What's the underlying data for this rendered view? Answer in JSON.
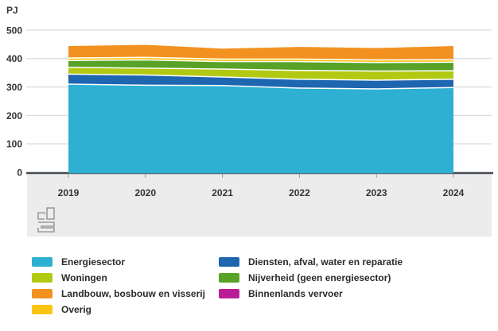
{
  "chart": {
    "unit": "PJ"
  },
  "chart_data": {
    "type": "area",
    "stacked": true,
    "title": "",
    "ylabel": "PJ",
    "xlabel": "",
    "ylim": [
      0,
      500
    ],
    "yticks": [
      0,
      100,
      200,
      300,
      400,
      500
    ],
    "grid": true,
    "legend_position": "bottom",
    "x": [
      2019,
      2020,
      2021,
      2022,
      2023,
      2024
    ],
    "series": [
      {
        "name": "Energiesector",
        "color": "#2EB0D3",
        "values": [
          310,
          306,
          305,
          296,
          293,
          298
        ]
      },
      {
        "name": "Diensten, afval, water en reparatie",
        "color": "#1F66B0",
        "values": [
          35,
          36,
          30,
          31,
          31,
          29
        ]
      },
      {
        "name": "Woningen",
        "color": "#B2C914",
        "values": [
          24,
          24,
          28,
          31,
          32,
          30
        ]
      },
      {
        "name": "Nijverheid (geen energiesector)",
        "color": "#58A227",
        "values": [
          24,
          29,
          26,
          31,
          30,
          30
        ]
      },
      {
        "name": "Overig",
        "color": "#FDC513",
        "values": [
          9,
          9,
          9,
          9,
          9,
          9
        ]
      },
      {
        "name": "Landbouw, bosbouw en visserij",
        "color": "#F29120",
        "values": [
          44,
          46,
          39,
          45,
          44,
          50
        ]
      },
      {
        "name": "Binnenlands vervoer",
        "color": "#B81F96",
        "values": [
          0,
          0,
          0,
          0,
          0,
          0
        ]
      }
    ]
  },
  "legend": {
    "columns": [
      [
        {
          "label": "Energiesector",
          "color": "#2EB0D3"
        },
        {
          "label": "Woningen",
          "color": "#B2C914"
        },
        {
          "label": "Landbouw, bosbouw en visserij",
          "color": "#F29120"
        },
        {
          "label": "Overig",
          "color": "#FDC513"
        }
      ],
      [
        {
          "label": "Diensten, afval, water en reparatie",
          "color": "#1F66B0"
        },
        {
          "label": "Nijverheid (geen energiesector)",
          "color": "#58A227"
        },
        {
          "label": "Binnenlands vervoer",
          "color": "#B81F96"
        }
      ]
    ]
  },
  "colors": {
    "axis": "#454c52",
    "grid": "#dcdcdc",
    "band": "#ececec",
    "tick_text": "#333333",
    "logo": "#9b9b9b"
  }
}
